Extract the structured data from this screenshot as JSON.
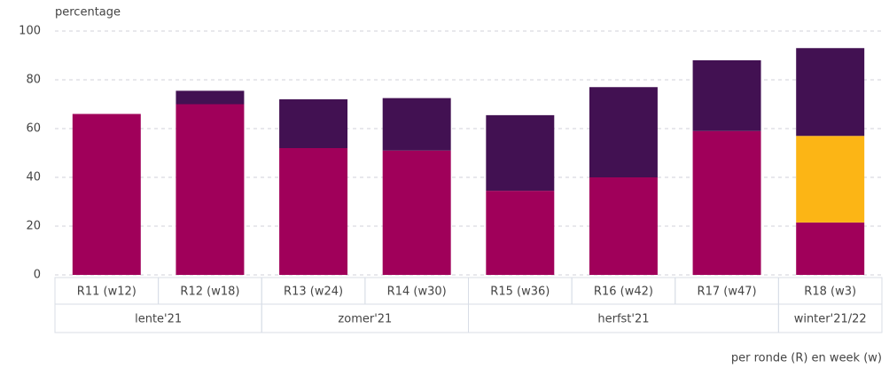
{
  "chart_data": {
    "type": "stacked_bar",
    "y_label": "percentage",
    "x_label": "per ronde (R) en week (w)",
    "categories": [
      "R11 (w12)",
      "R12 (w18)",
      "R13 (w24)",
      "R14 (w30)",
      "R15 (w36)",
      "R16 (w42)",
      "R17 (w47)",
      "R18 (w3)"
    ],
    "groups": [
      {
        "label": "lente'21",
        "span": 2
      },
      {
        "label": "zomer'21",
        "span": 2
      },
      {
        "label": "herfst'21",
        "span": 3
      },
      {
        "label": "winter'21/22",
        "span": 1
      }
    ],
    "series": [
      {
        "color": "#a0005a",
        "values": [
          66,
          70,
          52,
          51,
          34.5,
          40,
          59,
          21.5
        ]
      },
      {
        "color": "#fcb515",
        "values": [
          0,
          0,
          0,
          0,
          0,
          0,
          0,
          35.5
        ]
      },
      {
        "color": "#421152",
        "values": [
          0,
          5.5,
          20,
          21.5,
          31,
          37,
          29,
          36
        ]
      }
    ],
    "ylim": [
      0,
      100
    ],
    "yticks": [
      0,
      20,
      40,
      60,
      80,
      100
    ],
    "grid": true
  }
}
